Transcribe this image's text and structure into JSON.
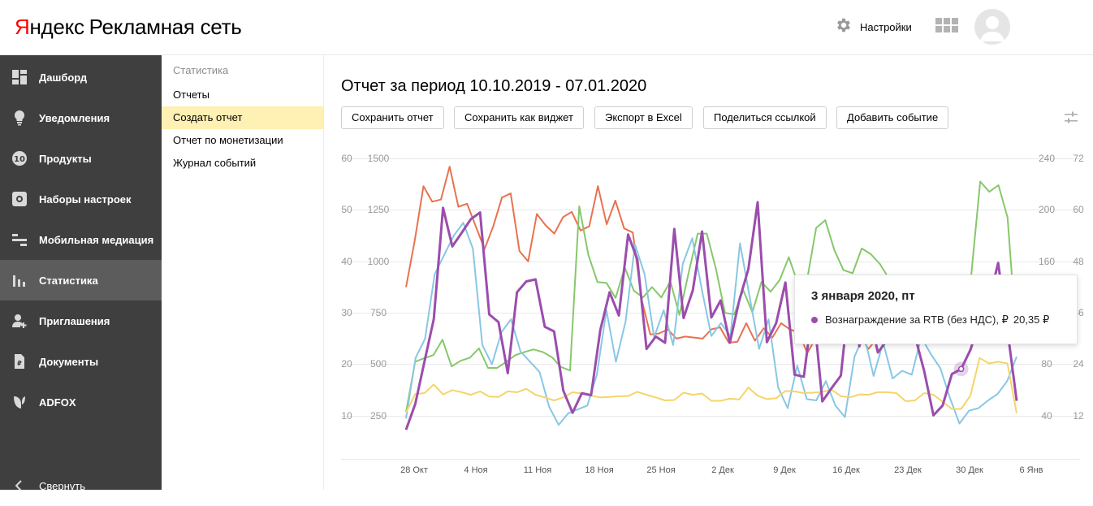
{
  "header": {
    "logo_brand_first": "Я",
    "logo_brand_rest": "ндекс",
    "service_name": "Рекламная сеть",
    "settings_label": "Настройки",
    "apps_icon": "apps-grid-icon",
    "avatar_icon": "user-avatar-icon"
  },
  "sidebar": {
    "items": [
      {
        "label": "Дашборд",
        "icon": "dashboard-icon"
      },
      {
        "label": "Уведомления",
        "icon": "lightbulb-icon"
      },
      {
        "label": "Продукты",
        "icon": "products-10-icon"
      },
      {
        "label": "Наборы настроек",
        "icon": "gear-icon"
      },
      {
        "label": "Мобильная медиация",
        "icon": "mediation-icon"
      },
      {
        "label": "Статистика",
        "icon": "bar-chart-icon",
        "active": true
      },
      {
        "label": "Приглашения",
        "icon": "add-user-icon"
      },
      {
        "label": "Документы",
        "icon": "document-icon"
      },
      {
        "label": "ADFOX",
        "icon": "adfox-leaf-icon"
      },
      {
        "label": "Свернуть",
        "icon": "chevron-left-icon"
      }
    ]
  },
  "submenu": {
    "title": "Статистика",
    "items": [
      {
        "label": "Отчеты"
      },
      {
        "label": "Создать отчет",
        "active": true
      },
      {
        "label": "Отчет по монетизации"
      },
      {
        "label": "Журнал событий"
      }
    ]
  },
  "main": {
    "title": "Отчет за период 10.10.2019 - 07.01.2020",
    "toolbar": {
      "save_report": "Сохранить отчет",
      "save_widget": "Сохранить как виджет",
      "export_excel": "Экспорт в Excel",
      "share_link": "Поделиться ссылкой",
      "add_event": "Добавить событие"
    },
    "chart_settings_icon": "sliders-icon"
  },
  "tooltip": {
    "date": "3 января 2020, пт",
    "series_name": "Вознаграждение за RTB (без НДС), ₽",
    "value": "20,35 ₽",
    "color": "#9b4dad"
  },
  "chart_data": {
    "type": "line",
    "x_tick_labels": [
      "28 Окт",
      "4 Ноя",
      "11 Ноя",
      "18 Ноя",
      "25 Ноя",
      "2 Дек",
      "9 Дек",
      "16 Дек",
      "23 Дек",
      "30 Дек",
      "6 Янв"
    ],
    "axes": {
      "left_outer": {
        "ticks": [
          "10",
          "20",
          "30",
          "40",
          "50",
          "60"
        ],
        "range": [
          5,
          60
        ]
      },
      "left_inner": {
        "ticks": [
          "250",
          "500",
          "750",
          "1000",
          "1250",
          "1500"
        ],
        "range": [
          125,
          1500
        ]
      },
      "right_inner": {
        "ticks": [
          "40",
          "80",
          "120",
          "160",
          "200",
          "240"
        ],
        "range": [
          20,
          240
        ]
      },
      "right_outer": {
        "ticks": [
          "12",
          "24",
          "36",
          "48",
          "60",
          "72"
        ],
        "range": [
          6,
          72
        ]
      }
    },
    "grid": true,
    "series": [
      {
        "color": "#e8724f",
        "axis": "left_inner",
        "values": [
          875,
          1100,
          1365,
          1290,
          1300,
          1460,
          1265,
          1280,
          1170,
          1060,
          1170,
          1310,
          1330,
          1050,
          1000,
          1230,
          1175,
          1135,
          1215,
          1240,
          1150,
          1170,
          1365,
          1180,
          1295,
          1160,
          1140,
          815,
          645,
          650,
          670,
          625,
          635,
          630,
          625,
          670,
          680,
          605,
          610,
          700,
          615,
          675,
          630,
          700,
          670,
          655,
          555,
          630,
          710,
          625,
          670,
          630,
          645,
          575,
          625,
          640,
          615,
          640,
          640,
          640,
          700,
          625,
          660,
          640,
          660,
          675,
          680,
          680,
          720,
          660,
          660
        ]
      },
      {
        "color": "#86c86a",
        "axis": "left_outer",
        "values": [
          10.7,
          20.5,
          21.2,
          21.8,
          24.8,
          19.6,
          20.7,
          21.3,
          23.1,
          19.3,
          19.3,
          20.5,
          21.8,
          22.4,
          22.9,
          22.4,
          21.4,
          19.5,
          18.8,
          50.7,
          41.3,
          36.0,
          35.8,
          32.9,
          38.8,
          34.3,
          33.0,
          35.0,
          33.0,
          36.1,
          29.6,
          37.7,
          45.4,
          45.4,
          38.6,
          30.0,
          29.7,
          34.4,
          30.1,
          36.0,
          34.1,
          36.4,
          40.8,
          35.7,
          36.4,
          46.5,
          48.0,
          42.2,
          38.3,
          37.7,
          42.5,
          41.4,
          39.5,
          36.6,
          33.3,
          35.5,
          31.8,
          30.6,
          35.4,
          33.2,
          31.4,
          26.5,
          37.1,
          55.5,
          53.5,
          54.8,
          48.5,
          24.6
        ]
      },
      {
        "color": "#88c7e4",
        "axis": "right_inner",
        "values": [
          38,
          85,
          100,
          150,
          165,
          180,
          190,
          170,
          95,
          80,
          105,
          115,
          90,
          82,
          74,
          47,
          33,
          42,
          45,
          48,
          72,
          122,
          82,
          113,
          173,
          150,
          101,
          122,
          95,
          158,
          178,
          138,
          102,
          112,
          102,
          174,
          133,
          92,
          115,
          62,
          46,
          79,
          53,
          52,
          67,
          48,
          39,
          86,
          103,
          71,
          97,
          69,
          75,
          72,
          101,
          88,
          77,
          54,
          34,
          44,
          46,
          52,
          57,
          67,
          86
        ]
      },
      {
        "color": "#f5d46a",
        "axis": "right_outer",
        "values": [
          12.8,
          17.1,
          17.3,
          19.3,
          17.0,
          18.0,
          17.5,
          16.9,
          17.7,
          16.5,
          16.4,
          17.7,
          17.5,
          18.3,
          16.9,
          16.3,
          15.6,
          16.3,
          17.5,
          17.2,
          16.7,
          16.3,
          16.4,
          16.6,
          16.6,
          17.6,
          16.9,
          16.3,
          15.6,
          15.7,
          17.4,
          16.9,
          17.2,
          15.5,
          15.5,
          16.0,
          15.8,
          18.6,
          16.7,
          15.9,
          16.1,
          17.8,
          17.7,
          17.3,
          17.4,
          17.6,
          18.1,
          16.6,
          16.3,
          17.0,
          16.9,
          17.5,
          17.5,
          17.3,
          15.4,
          15.6,
          17.3,
          16.9,
          15.3,
          13.6,
          13.6,
          16.7,
          25.5,
          24.2,
          24.6,
          24.2,
          12.6
        ]
      },
      {
        "color": "#9b4dad",
        "axis": "left_outer",
        "values": [
          7.3,
          12.3,
          20.6,
          28.8,
          50.4,
          42.9,
          45.5,
          48.2,
          49.5,
          29.7,
          28.2,
          18.3,
          34.0,
          36.1,
          36.5,
          27.3,
          26.4,
          14.9,
          10.6,
          14.4,
          14.0,
          26.7,
          34.0,
          29.5,
          45.2,
          40.4,
          23.0,
          25.4,
          24.2,
          46.3,
          29.0,
          34.4,
          45.8,
          29.1,
          32.4,
          24.2,
          32.3,
          38.5,
          51.5,
          24.3,
          28.0,
          35.9,
          18.0,
          17.6,
          31.6,
          12.8,
          15.4,
          17.8,
          34.9,
          23.5,
          30.1,
          22.3,
          24.7,
          29.1,
          32.8,
          25.5,
          18.7,
          10.1,
          12.0,
          18.1,
          19.1,
          22.8,
          28.2,
          32.3,
          39.7,
          26.7,
          12.9
        ]
      }
    ],
    "highlighted_point": {
      "date": "3 января 2020, пт",
      "value": 20.35
    }
  }
}
